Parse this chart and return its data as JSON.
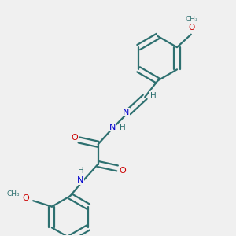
{
  "background_color": "#f0f0f0",
  "bond_color": "#2d7070",
  "N_color": "#0000cc",
  "O_color": "#cc0000",
  "H_color": "#2d7070",
  "atom_bg_color": "#f0f0f0",
  "line_width": 1.6,
  "fig_size": [
    3.0,
    3.0
  ],
  "dpi": 100,
  "xlim": [
    0,
    10
  ],
  "ylim": [
    0,
    10
  ]
}
